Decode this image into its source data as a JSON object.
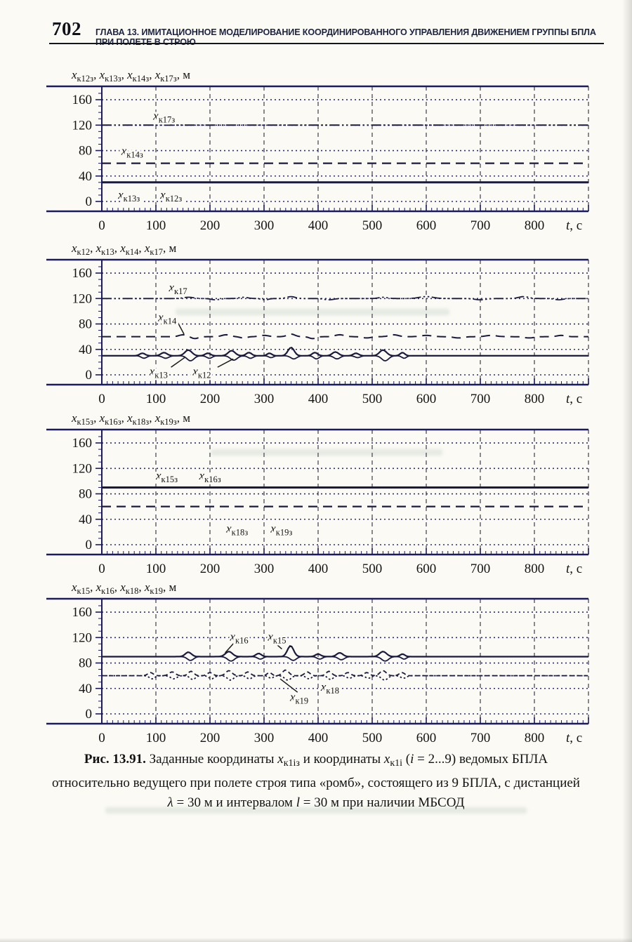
{
  "header": {
    "page_number": "702",
    "chapter_title": "ГЛАВА 13. ИМИТАЦИОННОЕ МОДЕЛИРОВАНИЕ КООРДИНИРОВАННОГО УПРАВЛЕНИЯ ДВИЖЕНИЕМ ГРУППЫ БПЛА ПРИ ПОЛЕТЕ В СТРОЮ"
  },
  "palette": {
    "paper": "#fbfaf5",
    "ink": "#1a1a3e",
    "axis": "#1b1b60",
    "grid_h": "#2d2d7a",
    "grid_v": "#4c4c58",
    "text": "#151515",
    "leader": "#1a1a1a"
  },
  "chart_data": [
    {
      "type": "line",
      "title": {
        "items": [
          "к12з",
          "к13з",
          "к14з",
          "к17з"
        ],
        "unit": "м"
      },
      "x": {
        "min": 0,
        "max": 900,
        "major": 100,
        "minor": 10,
        "label_max": 800,
        "axis_label_italic": "t",
        "axis_label_rest": ", с"
      },
      "y": {
        "ticks": [
          0,
          40,
          80,
          120,
          160
        ],
        "view_max": 181
      },
      "series": [
        {
          "sub": "к17з",
          "value": 120,
          "style": "dashdot",
          "w": 2.0
        },
        {
          "sub": "к14з",
          "value": 60,
          "style": "dash",
          "w": 2.2
        },
        {
          "sub": "к12з",
          "value": 30,
          "style": "solid",
          "w": 3.0
        },
        {
          "sub": "к13з",
          "value": 30,
          "style": "solid",
          "w": 1.6
        }
      ],
      "annotations": [
        {
          "sub": "к17з",
          "x": 95,
          "y": 134
        },
        {
          "sub": "к14з",
          "x": 36,
          "y": 79
        },
        {
          "sub": "к13з",
          "x": 30,
          "y": 10
        },
        {
          "sub": "к12з",
          "x": 108,
          "y": 10
        }
      ]
    },
    {
      "type": "line",
      "title": {
        "items": [
          "к12",
          "к13",
          "к14",
          "к17"
        ],
        "unit": "м"
      },
      "x": {
        "min": 0,
        "max": 900,
        "major": 100,
        "minor": 10,
        "label_max": 800,
        "axis_label_italic": "t",
        "axis_label_rest": ", с"
      },
      "y": {
        "ticks": [
          0,
          40,
          80,
          120,
          160
        ],
        "view_max": 181
      },
      "series": [
        {
          "sub": "к17",
          "value": 120,
          "style": "dashdot",
          "w": 1.8,
          "bumps": [
            [
              160,
              13,
              2
            ],
            [
              210,
              11,
              -2
            ],
            [
              262,
              11,
              2
            ],
            [
              302,
              9,
              -2
            ],
            [
              350,
              11,
              3
            ],
            [
              420,
              13,
              -2
            ],
            [
              520,
              11,
              2
            ],
            [
              600,
              18,
              3
            ],
            [
              700,
              15,
              -2
            ],
            [
              780,
              13,
              3
            ],
            [
              845,
              11,
              -2
            ]
          ]
        },
        {
          "sub": "к14",
          "value": 60,
          "style": "dash",
          "w": 2.0,
          "bumps": [
            [
              150,
              10,
              3
            ],
            [
              172,
              9,
              -3
            ],
            [
              230,
              11,
              3
            ],
            [
              262,
              9,
              -2
            ],
            [
              300,
              12,
              2
            ],
            [
              350,
              10,
              4
            ],
            [
              390,
              9,
              -3
            ],
            [
              440,
              12,
              3
            ],
            [
              490,
              11,
              -2
            ],
            [
              540,
              12,
              3
            ],
            [
              600,
              14,
              2
            ],
            [
              660,
              13,
              -2
            ],
            [
              720,
              14,
              2
            ],
            [
              790,
              13,
              -2
            ],
            [
              850,
              11,
              2
            ]
          ]
        },
        {
          "sub": "к12",
          "value": 30,
          "style": "solid",
          "w": 2.2,
          "bumps": [
            [
              75,
              7,
              4
            ],
            [
              115,
              8,
              5
            ],
            [
              160,
              9,
              9
            ],
            [
              196,
              7,
              4
            ],
            [
              240,
              9,
              8
            ],
            [
              272,
              7,
              5
            ],
            [
              310,
              6,
              4
            ],
            [
              350,
              8,
              13
            ],
            [
              394,
              7,
              5
            ],
            [
              432,
              8,
              6
            ],
            [
              470,
              7,
              4
            ],
            [
              520,
              9,
              9
            ],
            [
              556,
              6,
              5
            ]
          ]
        },
        {
          "sub": "к13",
          "value": 30,
          "style": "solid",
          "w": 1.8,
          "bumps": [
            [
              78,
              7,
              -4
            ],
            [
              118,
              8,
              -4
            ],
            [
              164,
              9,
              -8
            ],
            [
              199,
              7,
              -4
            ],
            [
              244,
              9,
              -7
            ],
            [
              275,
              7,
              -4
            ],
            [
              313,
              6,
              -3
            ],
            [
              355,
              8,
              -5
            ],
            [
              397,
              7,
              -5
            ],
            [
              435,
              8,
              -5
            ],
            [
              473,
              7,
              -3
            ],
            [
              524,
              9,
              -8
            ],
            [
              559,
              6,
              -4
            ]
          ]
        }
      ],
      "annotations": [
        {
          "sub": "к17",
          "x": 124,
          "y": 137
        },
        {
          "sub": "к14",
          "x": 104,
          "y": 90,
          "leader": [
            140,
            83,
            152,
            64
          ]
        },
        {
          "sub": "к13",
          "x": 88,
          "y": 5,
          "leader": [
            128,
            12,
            153,
            27
          ]
        },
        {
          "sub": "к12",
          "x": 168,
          "y": 5,
          "leader": [
            214,
            12,
            243,
            25
          ]
        }
      ]
    },
    {
      "type": "line",
      "title": {
        "items": [
          "к15з",
          "к16з",
          "к18з",
          "к19з"
        ],
        "unit": "м"
      },
      "x": {
        "min": 0,
        "max": 900,
        "major": 100,
        "minor": 10,
        "label_max": 800,
        "axis_label_italic": "t",
        "axis_label_rest": ", с"
      },
      "y": {
        "ticks": [
          0,
          40,
          80,
          120,
          160
        ],
        "view_max": 181
      },
      "series": [
        {
          "sub": "к15з",
          "value": 90,
          "style": "solid",
          "w": 3.0
        },
        {
          "sub": "к16з",
          "value": 90,
          "style": "solid",
          "w": 1.6
        },
        {
          "sub": "к18з",
          "value": 60,
          "style": "dash",
          "w": 2.2
        },
        {
          "sub": "к19з",
          "value": 60,
          "style": "dash",
          "w": 1.6
        }
      ],
      "annotations": [
        {
          "sub": "к15з",
          "x": 100,
          "y": 108
        },
        {
          "sub": "к16з",
          "x": 180,
          "y": 108
        },
        {
          "sub": "к18з",
          "x": 230,
          "y": 25
        },
        {
          "sub": "к19з",
          "x": 312,
          "y": 25
        }
      ]
    },
    {
      "type": "line",
      "title": {
        "items": [
          "к15",
          "к16",
          "к18",
          "к19"
        ],
        "unit": "м"
      },
      "x": {
        "min": 0,
        "max": 900,
        "major": 100,
        "minor": 10,
        "label_max": 800,
        "axis_label_italic": "t",
        "axis_label_rest": ", с"
      },
      "y": {
        "ticks": [
          0,
          40,
          80,
          120,
          160
        ],
        "view_max": 181
      },
      "series": [
        {
          "sub": "к15",
          "value": 90,
          "style": "solid",
          "w": 2.2,
          "bumps": [
            [
              160,
              8,
              7
            ],
            [
              235,
              9,
              8
            ],
            [
              290,
              7,
              5
            ],
            [
              349,
              8,
              17
            ],
            [
              400,
              7,
              4
            ],
            [
              440,
              8,
              6
            ],
            [
              520,
              9,
              8
            ],
            [
              556,
              6,
              4
            ]
          ]
        },
        {
          "sub": "к16",
          "value": 90,
          "style": "solid",
          "w": 1.8,
          "bumps": [
            [
              164,
              8,
              -6
            ],
            [
              239,
              9,
              -7
            ],
            [
              293,
              7,
              -4
            ],
            [
              354,
              8,
              -6
            ],
            [
              403,
              7,
              -4
            ],
            [
              443,
              8,
              -5
            ],
            [
              524,
              9,
              -7
            ],
            [
              559,
              6,
              -4
            ]
          ]
        },
        {
          "sub": "к18",
          "value": 60,
          "style": "dash2",
          "w": 1.8,
          "bumps": [
            [
              90,
              7,
              5
            ],
            [
              130,
              8,
              6
            ],
            [
              165,
              7,
              7
            ],
            [
              200,
              7,
              5
            ],
            [
              235,
              8,
              8
            ],
            [
              270,
              7,
              6
            ],
            [
              310,
              6,
              5
            ],
            [
              340,
              8,
              9
            ],
            [
              380,
              7,
              6
            ],
            [
              420,
              7,
              7
            ],
            [
              455,
              7,
              5
            ],
            [
              490,
              7,
              5
            ],
            [
              520,
              8,
              8
            ],
            [
              555,
              7,
              5
            ]
          ]
        },
        {
          "sub": "к19",
          "value": 60,
          "style": "dot",
          "w": 1.8,
          "bumps": [
            [
              93,
              7,
              -5
            ],
            [
              133,
              8,
              -5
            ],
            [
              168,
              7,
              -6
            ],
            [
              203,
              7,
              -5
            ],
            [
              238,
              8,
              -7
            ],
            [
              273,
              7,
              -5
            ],
            [
              313,
              6,
              -4
            ],
            [
              344,
              8,
              -7
            ],
            [
              383,
              7,
              -5
            ],
            [
              423,
              7,
              -6
            ],
            [
              458,
              7,
              -4
            ],
            [
              493,
              7,
              -4
            ],
            [
              523,
              8,
              -7
            ],
            [
              558,
              7,
              -4
            ]
          ]
        }
      ],
      "annotations": [
        {
          "sub": "к16",
          "x": 237,
          "y": 121,
          "leader": [
            246,
            113,
            228,
            96
          ]
        },
        {
          "sub": "к15",
          "x": 307,
          "y": 121,
          "leader": [
            318,
            113,
            333,
            102
          ]
        },
        {
          "sub": "к19",
          "x": 348,
          "y": 26,
          "leader": [
            362,
            34,
            330,
            55
          ]
        },
        {
          "sub": "к18",
          "x": 405,
          "y": 42
        }
      ]
    }
  ],
  "caption": {
    "lines": [
      [
        {
          "t": "Рис. 13.91. ",
          "b": 1
        },
        {
          "t": "Заданные координаты "
        },
        {
          "t": "x",
          "i": 1
        },
        {
          "t": "к1iз",
          "sub": 1
        },
        {
          "t": " и координаты "
        },
        {
          "t": "x",
          "i": 1
        },
        {
          "t": "к1i",
          "sub": 1
        },
        {
          "t": " ("
        },
        {
          "t": "i",
          "i": 1
        },
        {
          "t": " = 2...9) ведомых БПЛА"
        }
      ],
      [
        {
          "t": "относительно ведущего при полете строя типа «ромб», состоящего из 9 БПЛА, с дистанцией"
        }
      ],
      [
        {
          "t": "λ",
          "i": 1
        },
        {
          "t": " = 30 м и интервалом "
        },
        {
          "t": "l",
          "i": 1
        },
        {
          "t": " = 30 м при наличии МБСОД"
        }
      ]
    ]
  }
}
